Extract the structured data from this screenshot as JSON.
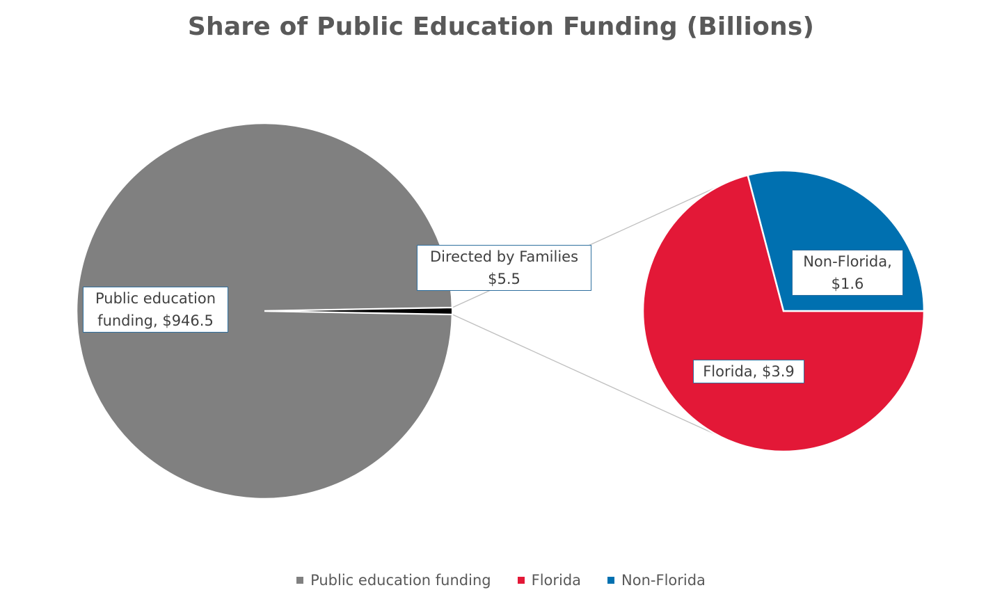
{
  "chart_data": {
    "type": "pie",
    "title": "Share of Public Education Funding (Billions)",
    "slices": [
      {
        "name": "Public education funding",
        "value": 946.5,
        "label": "Public education funding, $946.5"
      },
      {
        "name": "Directed by Families",
        "value": 5.5,
        "label": "Directed by Families $5.5"
      }
    ],
    "breakout": {
      "of": "Directed by Families",
      "slices": [
        {
          "name": "Florida",
          "value": 3.9,
          "label": "Florida, $3.9"
        },
        {
          "name": "Non-Florida",
          "value": 1.6,
          "label": "Non-Florida, $1.6"
        }
      ]
    },
    "labels": {
      "public_line1": "Public education",
      "public_line2": "funding, $946.5",
      "directed_line1": "Directed by Families",
      "directed_line2": "$5.5",
      "nonfl_line1": "Non-Florida,",
      "nonfl_line2": "$1.6",
      "florida_line1": "Florida, $3.9"
    },
    "legend": {
      "position": "bottom",
      "items": [
        {
          "name": "Public education funding",
          "color": "#808080"
        },
        {
          "name": "Florida",
          "color": "#e31837"
        },
        {
          "name": "Non-Florida",
          "color": "#0070b0"
        }
      ]
    },
    "colors": {
      "public": "#808080",
      "directed": "#000000",
      "florida": "#e31837",
      "nonflorida": "#0070b0",
      "connector": "#bfbfbf"
    }
  }
}
